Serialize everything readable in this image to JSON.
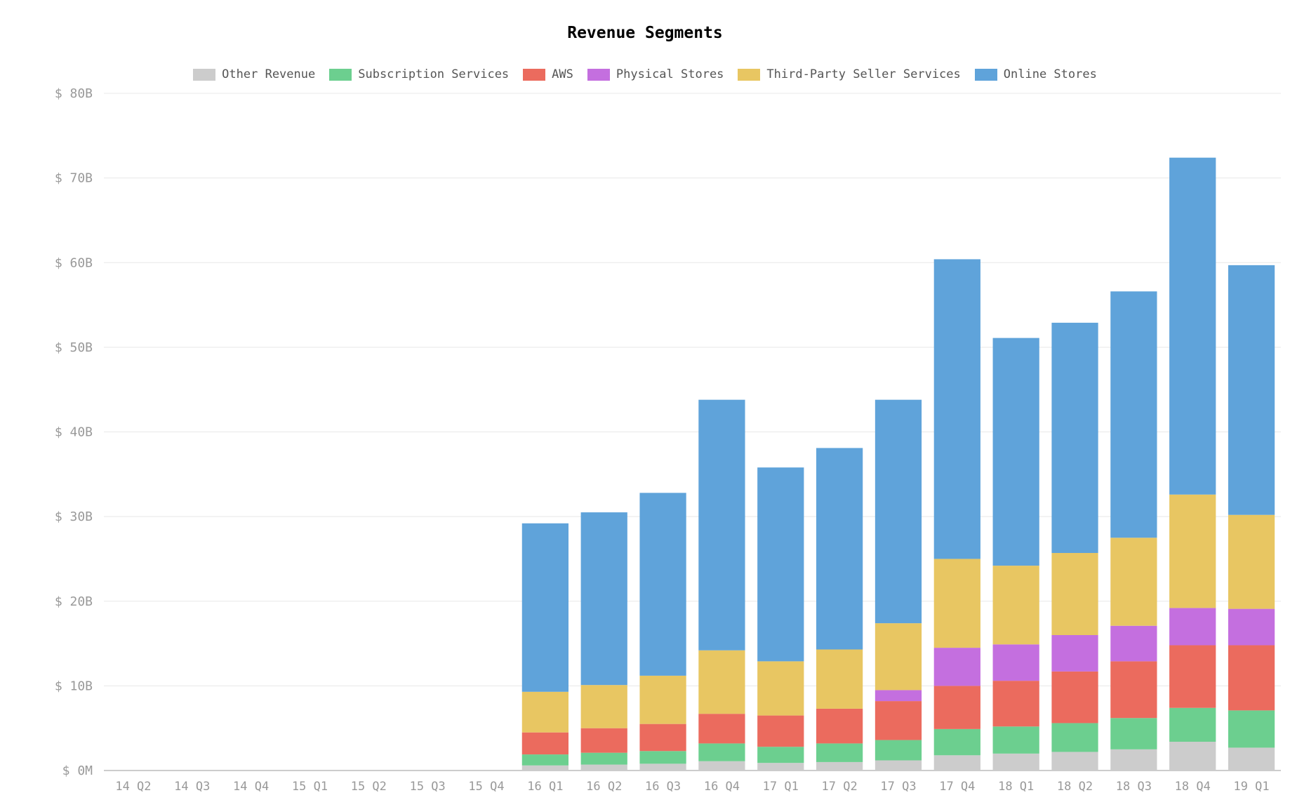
{
  "chart_data": {
    "type": "bar",
    "stacked": true,
    "title": "Revenue Segments",
    "xlabel": "",
    "ylabel": "",
    "ylim": [
      0,
      80
    ],
    "grid": true,
    "legend_position": "top-center",
    "y_ticks": [
      "$ 0M",
      "$ 10B",
      "$ 20B",
      "$ 30B",
      "$ 40B",
      "$ 50B",
      "$ 60B",
      "$ 70B",
      "$ 80B"
    ],
    "categories": [
      "14 Q2",
      "14 Q3",
      "14 Q4",
      "15 Q1",
      "15 Q2",
      "15 Q3",
      "15 Q4",
      "16 Q1",
      "16 Q2",
      "16 Q3",
      "16 Q4",
      "17 Q1",
      "17 Q2",
      "17 Q3",
      "17 Q4",
      "18 Q1",
      "18 Q2",
      "18 Q3",
      "18 Q4",
      "19 Q1"
    ],
    "series": [
      {
        "name": "Other Revenue",
        "color": "#cccccc",
        "values": [
          0,
          0,
          0,
          0,
          0,
          0,
          0,
          0.6,
          0.7,
          0.8,
          1.1,
          0.9,
          1.0,
          1.2,
          1.8,
          2.0,
          2.2,
          2.5,
          3.4,
          2.7
        ]
      },
      {
        "name": "Subscription Services",
        "color": "#6ccf8f",
        "values": [
          0,
          0,
          0,
          0,
          0,
          0,
          0,
          1.3,
          1.4,
          1.5,
          2.1,
          1.9,
          2.2,
          2.4,
          3.1,
          3.2,
          3.4,
          3.7,
          4.0,
          4.4
        ]
      },
      {
        "name": "AWS",
        "color": "#eb6b5e",
        "values": [
          0,
          0,
          0,
          0,
          0,
          0,
          0,
          2.6,
          2.9,
          3.2,
          3.5,
          3.7,
          4.1,
          4.6,
          5.1,
          5.4,
          6.1,
          6.7,
          7.4,
          7.7
        ]
      },
      {
        "name": "Physical Stores",
        "color": "#c46fdf",
        "values": [
          0,
          0,
          0,
          0,
          0,
          0,
          0,
          0,
          0,
          0,
          0,
          0,
          0,
          1.3,
          4.5,
          4.3,
          4.3,
          4.2,
          4.4,
          4.3
        ]
      },
      {
        "name": "Third-Party Seller Services",
        "color": "#e8c662",
        "values": [
          0,
          0,
          0,
          0,
          0,
          0,
          0,
          4.8,
          5.1,
          5.7,
          7.5,
          6.4,
          7.0,
          7.9,
          10.5,
          9.3,
          9.7,
          10.4,
          13.4,
          11.1
        ]
      },
      {
        "name": "Online Stores",
        "color": "#5fa3da",
        "values": [
          0,
          0,
          0,
          0,
          0,
          0,
          0,
          19.9,
          20.4,
          21.6,
          29.6,
          22.9,
          23.8,
          26.4,
          35.4,
          26.9,
          27.2,
          29.1,
          39.8,
          29.5
        ]
      }
    ]
  }
}
